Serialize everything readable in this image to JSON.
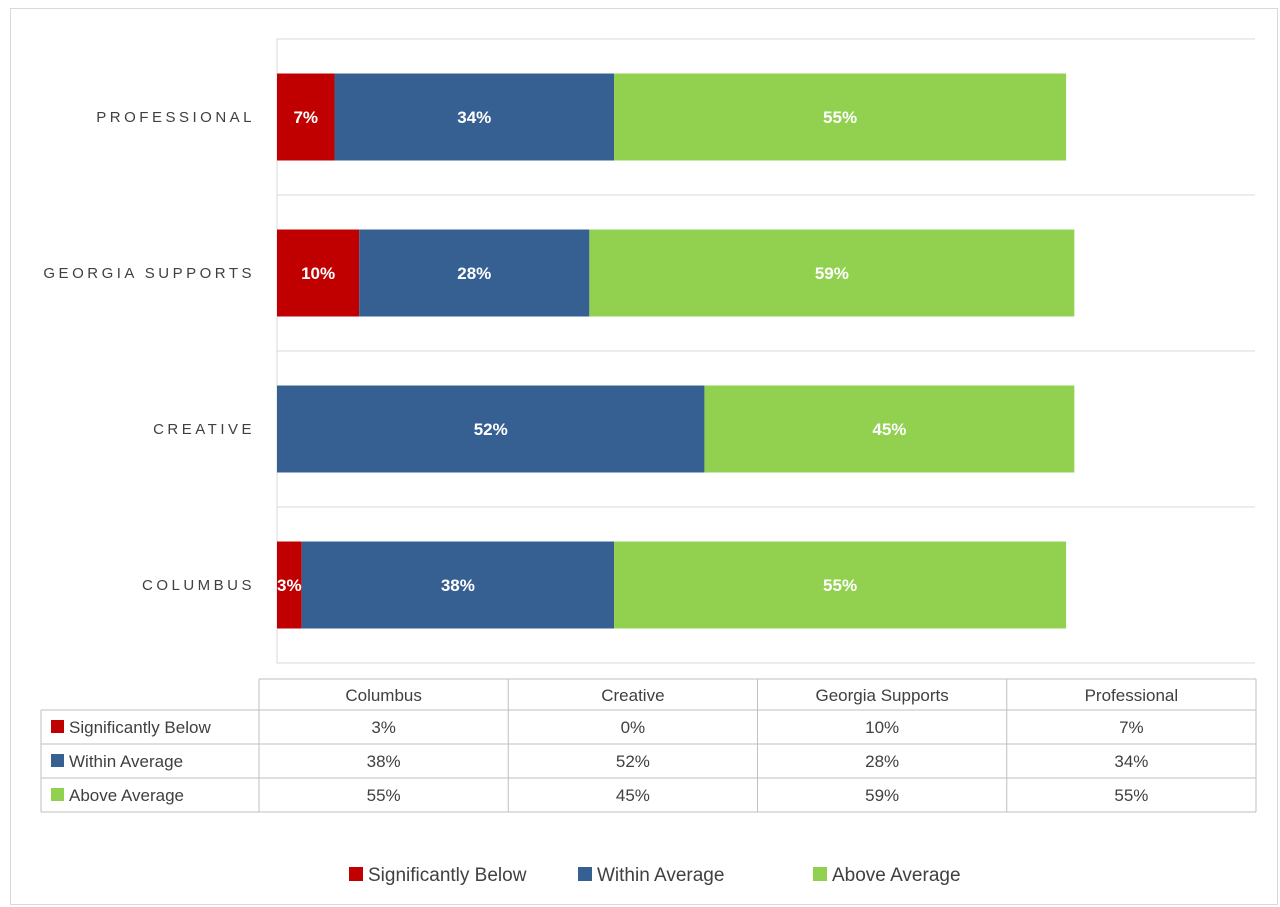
{
  "chart_data": {
    "type": "bar",
    "orientation": "horizontal",
    "stacked": true,
    "title": "",
    "xlabel": "",
    "ylabel": "",
    "xlim": [
      0,
      1
    ],
    "categories": [
      "PROFESSIONAL",
      "GEORGIA SUPPORTS",
      "CREATIVE",
      "COLUMBUS"
    ],
    "series": [
      {
        "name": "Significantly Below",
        "color": "#c00000",
        "values": [
          0.07,
          0.1,
          0.0,
          0.03
        ],
        "labels": [
          "7%",
          "10%",
          "",
          "3%"
        ]
      },
      {
        "name": "Within Average",
        "color": "#376092",
        "values": [
          0.34,
          0.28,
          0.52,
          0.38
        ],
        "labels": [
          "34%",
          "28%",
          "52%",
          "38%"
        ]
      },
      {
        "name": "Above Average",
        "color": "#92d050",
        "values": [
          0.55,
          0.59,
          0.45,
          0.55
        ],
        "labels": [
          "55%",
          "59%",
          "45%",
          "55%"
        ]
      }
    ],
    "grid": true,
    "legend_position": "bottom",
    "data_table": {
      "columns": [
        "Columbus",
        "Creative",
        "Georgia Supports",
        "Professional"
      ],
      "rows": [
        {
          "name": "Significantly Below",
          "color": "#c00000",
          "cells": [
            "3%",
            "0%",
            "10%",
            "7%"
          ]
        },
        {
          "name": "Within Average",
          "color": "#376092",
          "cells": [
            "38%",
            "52%",
            "28%",
            "34%"
          ]
        },
        {
          "name": "Above Average",
          "color": "#92d050",
          "cells": [
            "55%",
            "45%",
            "59%",
            "55%"
          ]
        }
      ]
    }
  }
}
